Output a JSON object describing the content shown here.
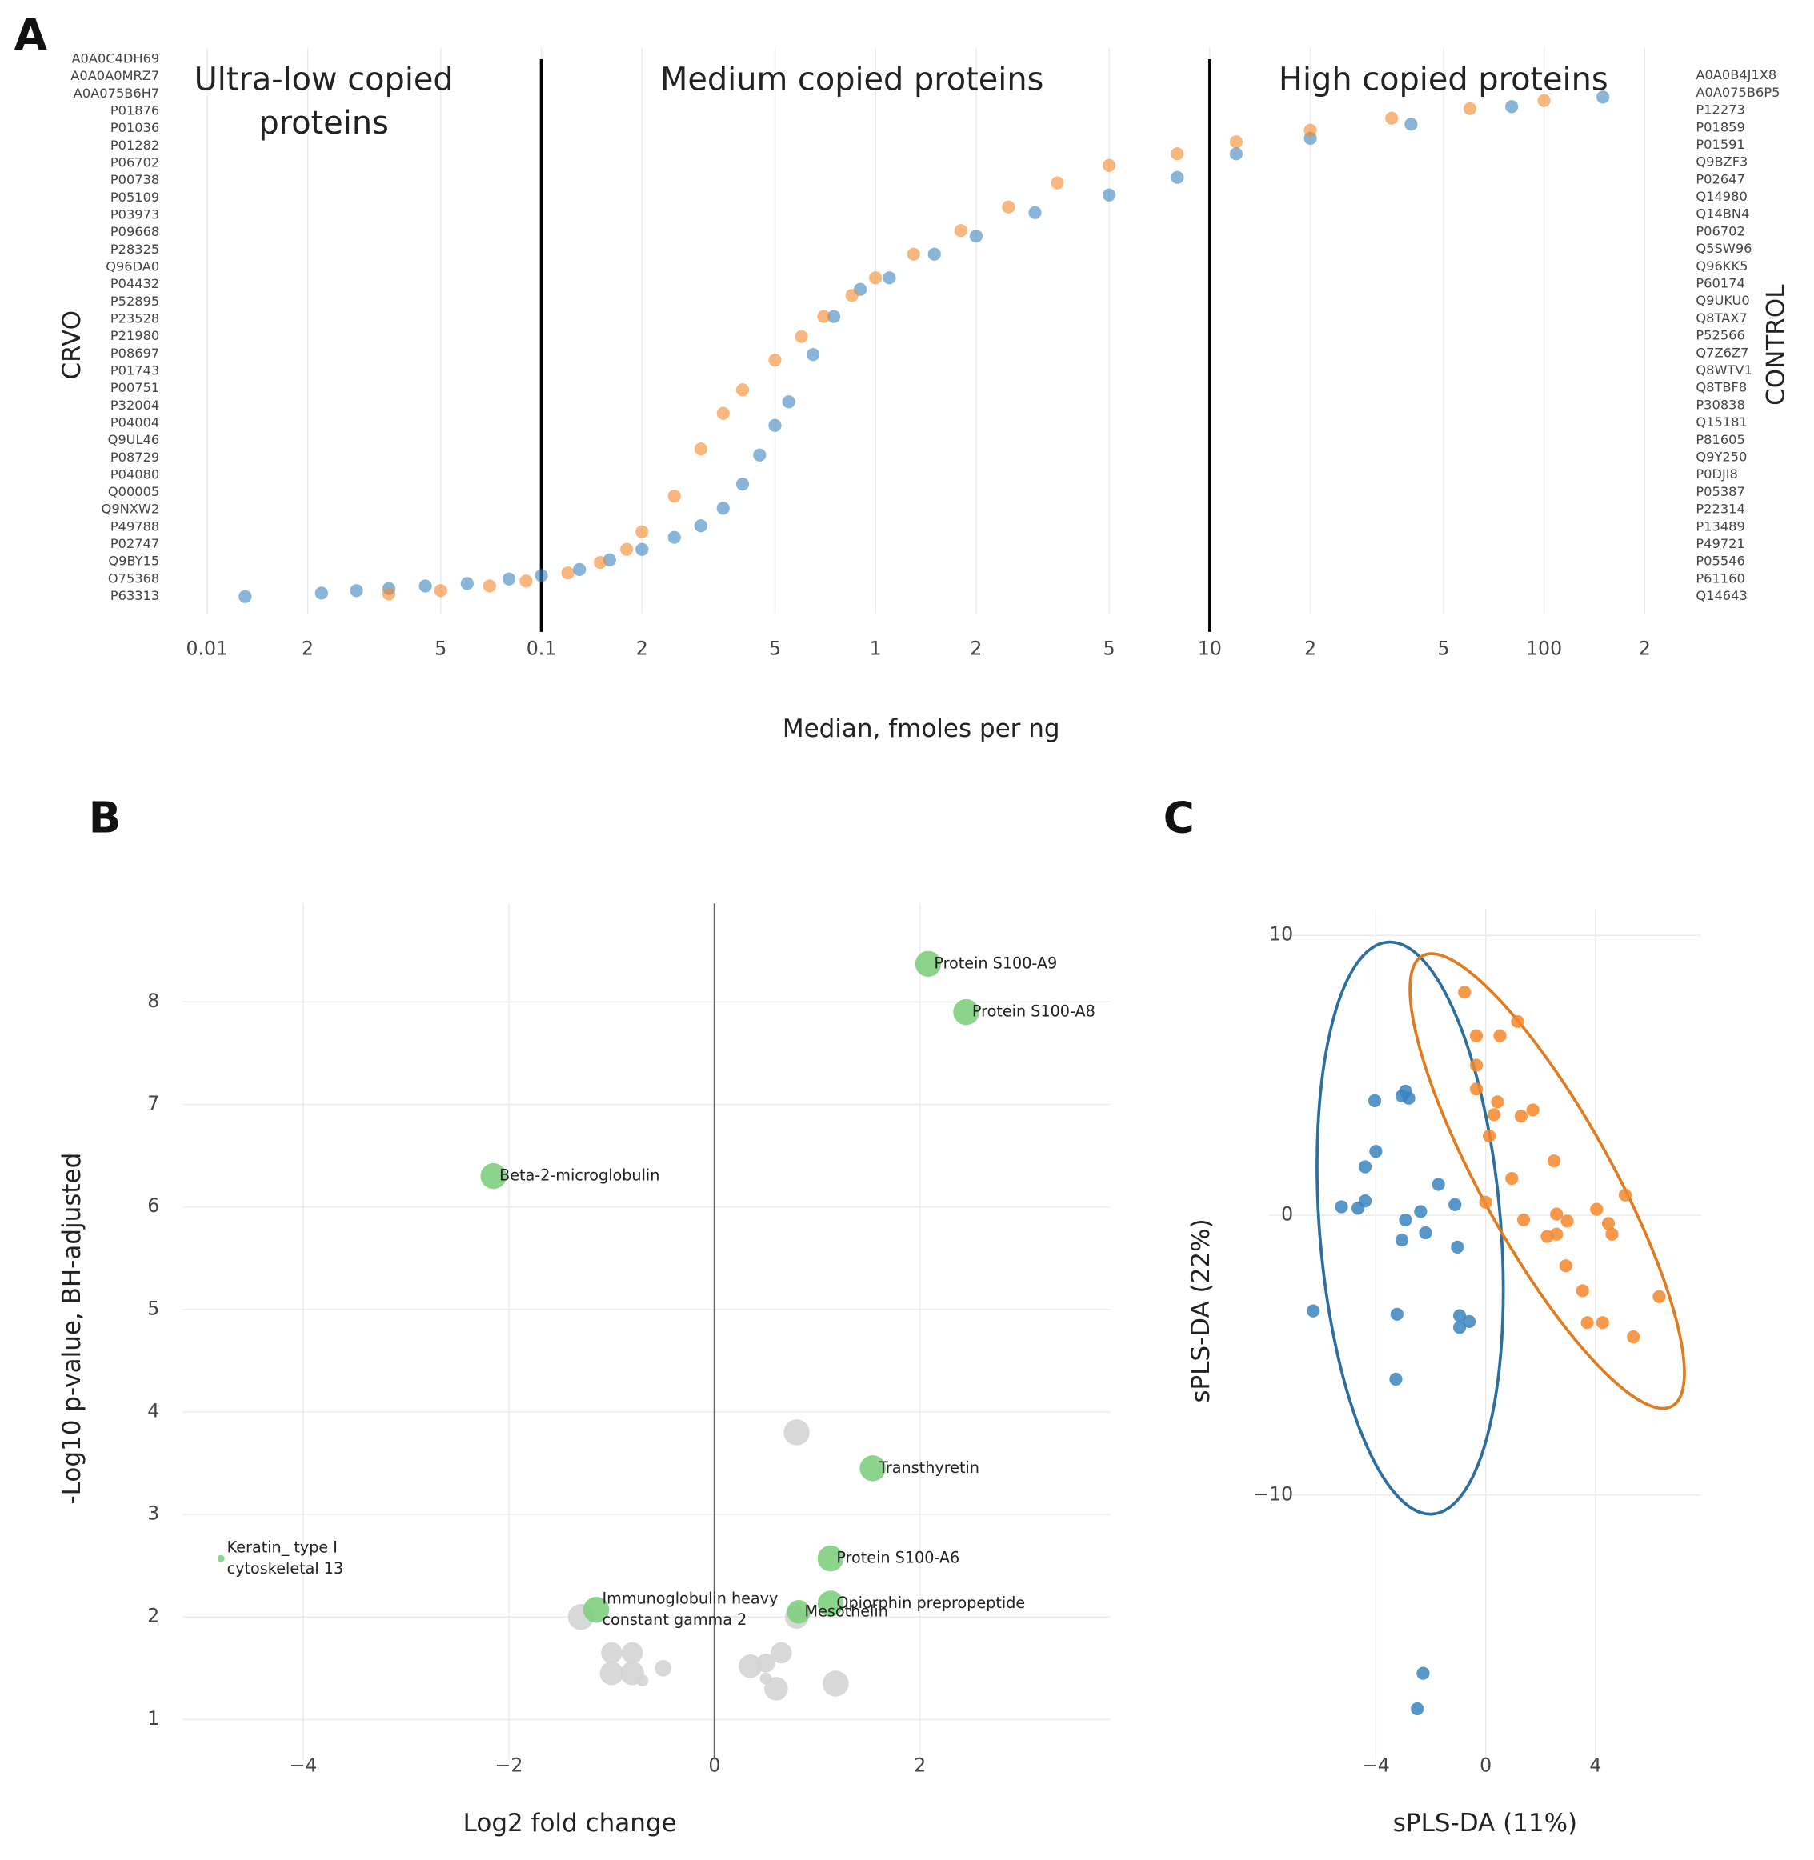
{
  "chart_data": [
    {
      "type": "rank_scatter",
      "panel": "A",
      "xlabel": "Median, fmoles per ng",
      "ylabel": "CRVO",
      "y2label": "CONTROL",
      "log_x": true,
      "xlim": [
        0.0075,
        250
      ],
      "ylim": [
        -0.035,
        1.094
      ],
      "xticks": [
        0.01,
        {
          "value": 0.02,
          "label": "2"
        },
        {
          "value": 0.05,
          "label": "5"
        },
        0.1,
        {
          "value": 0.2,
          "label": "2"
        },
        {
          "value": 0.5,
          "label": "5"
        },
        1,
        2,
        5,
        10,
        {
          "value": 20,
          "label": "2"
        },
        {
          "value": 50,
          "label": "5"
        },
        100,
        {
          "value": 200,
          "label": "2"
        }
      ],
      "vlines": [
        0.1,
        10
      ],
      "region_labels": [
        [
          "Ultra-low copied",
          "proteins"
        ],
        [
          "Medium copied proteins"
        ],
        [
          "High copied proteins"
        ]
      ],
      "left_labels": [
        "A0A0C4DH69",
        "A0A0A0MRZ7",
        "A0A075B6H7",
        "P01876",
        "P01036",
        "P01282",
        "P06702",
        "P00738",
        "P05109",
        "P03973",
        "P09668",
        "P28325",
        "Q96DA0",
        "P04432",
        "P52895",
        "P23528",
        "P21980",
        "P08697",
        "P01743",
        "P00751",
        "P32004",
        "P04004",
        "Q9UL46",
        "P08729",
        "P04080",
        "Q00005",
        "Q9NXW2",
        "P49788",
        "P02747",
        "Q9BY15",
        "O75368",
        "P63313"
      ],
      "right_labels": [
        "A0A0B4J1X8",
        "A0A075B6P5",
        "P12273",
        "P01859",
        "P01591",
        "Q9BZF3",
        "P02647",
        "Q14980",
        "Q14BN4",
        "P06702",
        "Q5SW96",
        "Q96KK5",
        "P60174",
        "Q9UKU0",
        "Q8TAX7",
        "P52566",
        "Q7Z6Z7",
        "Q8WTV1",
        "Q8TBF8",
        "P30838",
        "Q15181",
        "P81605",
        "Q9Y250",
        "P0DJI8",
        "P05387",
        "P22314",
        "P13489",
        "P49721",
        "P05546",
        "P61160",
        "Q14643"
      ],
      "series": [
        {
          "color": "#3a84c0",
          "x": [
            0.013,
            0.022,
            0.028,
            0.035,
            0.045,
            0.06,
            0.08,
            0.1,
            0.13,
            0.16,
            0.2,
            0.25,
            0.3,
            0.35,
            0.4,
            0.45,
            0.5,
            0.55,
            0.65,
            0.75,
            0.9,
            1.1,
            1.5,
            2,
            3,
            5,
            8,
            12,
            20,
            40,
            80,
            150
          ],
          "y": [
            0,
            0.007,
            0.012,
            0.016,
            0.021,
            0.026,
            0.035,
            0.042,
            0.054,
            0.073,
            0.094,
            0.118,
            0.141,
            0.176,
            0.224,
            0.282,
            0.341,
            0.388,
            0.482,
            0.558,
            0.612,
            0.635,
            0.682,
            0.718,
            0.765,
            0.8,
            0.835,
            0.882,
            0.913,
            0.941,
            0.976,
            0.995
          ]
        },
        {
          "color": "#f5872b",
          "x": [
            0.035,
            0.05,
            0.07,
            0.09,
            0.12,
            0.15,
            0.18,
            0.2,
            0.25,
            0.3,
            0.35,
            0.4,
            0.5,
            0.6,
            0.7,
            0.85,
            1,
            1.3,
            1.8,
            2.5,
            3.5,
            5,
            8,
            12,
            20,
            35,
            60,
            100
          ],
          "y": [
            0.005,
            0.012,
            0.021,
            0.031,
            0.047,
            0.068,
            0.094,
            0.129,
            0.2,
            0.294,
            0.365,
            0.412,
            0.471,
            0.518,
            0.558,
            0.6,
            0.635,
            0.682,
            0.729,
            0.776,
            0.824,
            0.859,
            0.882,
            0.906,
            0.929,
            0.953,
            0.972,
            0.988
          ]
        }
      ]
    },
    {
      "type": "bubble",
      "panel": "B",
      "xlabel": "Log2 fold change",
      "ylabel": "-Log10 p-value, BH-adjusted",
      "xlim": [
        -5.17,
        3.85
      ],
      "ylim": [
        0.61,
        8.96
      ],
      "xticks": [
        {
          "value": -4,
          "label": "−4"
        },
        {
          "value": -2,
          "label": "−2"
        },
        0,
        2
      ],
      "yticks": [
        1,
        2,
        3,
        4,
        5,
        6,
        7,
        8
      ],
      "grid": true,
      "series": [
        {
          "color": "#d4d4d4",
          "x": [
            0.8,
            -1.3,
            0.8,
            -1.0,
            -0.8,
            -1.0,
            -0.8,
            -0.5,
            0.35,
            0.5,
            0.65,
            0.6,
            1.18,
            -0.7,
            0.5
          ],
          "y": [
            3.8,
            2.0,
            2.0,
            1.65,
            1.65,
            1.45,
            1.45,
            1.5,
            1.52,
            1.55,
            1.65,
            1.3,
            1.35,
            1.38,
            1.4
          ],
          "sizes": [
            11,
            11,
            10,
            9,
            9,
            10,
            10,
            7,
            10,
            8,
            9,
            10,
            11,
            5,
            5
          ]
        },
        {
          "color": "#7fcf7f",
          "x": [
            2.08,
            2.45,
            -2.15,
            1.54,
            1.13,
            1.13,
            0.82,
            -1.15,
            -4.8
          ],
          "y": [
            8.37,
            7.9,
            6.3,
            3.45,
            2.57,
            2.13,
            2.05,
            2.07,
            2.57
          ],
          "sizes": [
            11,
            11,
            11,
            11,
            11,
            11,
            10,
            11,
            3
          ],
          "labels": [
            [
              "Protein S100-A9"
            ],
            [
              "Protein S100-A8"
            ],
            [
              "Beta-2-microglobulin"
            ],
            [
              "Transthyretin"
            ],
            [
              "Protein S100-A6"
            ],
            [
              "Opiorphin prepropeptide"
            ],
            [
              "Mesothelin"
            ],
            [
              "Immunoglobulin heavy",
              "constant gamma 2"
            ],
            [
              "Keratin_ type I",
              "cytoskeletal 13"
            ]
          ]
        }
      ]
    },
    {
      "type": "scatter_ellipse",
      "panel": "C",
      "xlabel": "sPLS-DA (11%)",
      "ylabel": "sPLS-DA (22%)",
      "xlim": [
        -7.87,
        7.83
      ],
      "ylim": [
        -19.45,
        10.93
      ],
      "xticks": [
        {
          "value": -4,
          "label": "−4"
        },
        0,
        4
      ],
      "yticks": [
        {
          "value": -10,
          "label": "−10"
        },
        0,
        10
      ],
      "grid": true,
      "series": [
        {
          "color": "#3a84c0",
          "ellipse_color": "#2a6f9e",
          "x": [
            -6.28,
            -5.25,
            -4.65,
            -4.39,
            -4.39,
            -4,
            -4.04,
            -3.05,
            -2.92,
            -2.8,
            -1.72,
            -1.12,
            -2.37,
            -2.92,
            -3.05,
            -2.19,
            -1.03,
            -3.23,
            -0.95,
            -0.6,
            -0.95,
            -3.27,
            -2.28,
            -2.49
          ],
          "y": [
            -3.42,
            0.3,
            0.25,
            0.51,
            1.73,
            2.28,
            4.09,
            4.26,
            4.43,
            4.18,
            1.1,
            0.38,
            0.13,
            -0.17,
            -0.89,
            -0.63,
            -1.14,
            -3.54,
            -3.59,
            -3.8,
            -4.01,
            -5.86,
            -16.37,
            -17.64
          ],
          "ellipse": {
            "cx": -2.75,
            "cy": -0.46,
            "rx": 3.3,
            "ry": 10.25,
            "angle": -4.5
          }
        },
        {
          "color": "#f5872b",
          "ellipse_color": "#e07b1f",
          "x": [
            -0.77,
            -0.34,
            0.52,
            1.16,
            -0.34,
            -0.34,
            0.43,
            1.72,
            1.29,
            0.3,
            0.13,
            2.49,
            0.95,
            0,
            1.38,
            2.58,
            2.97,
            4.04,
            5.08,
            4.47,
            4.6,
            2.24,
            2.58,
            2.92,
            3.53,
            3.7,
            4.26,
            5.38,
            6.32
          ],
          "y": [
            7.97,
            6.41,
            6.41,
            6.92,
            5.36,
            4.51,
            4.05,
            3.76,
            3.54,
            3.59,
            2.83,
            1.94,
            1.31,
            0.46,
            -0.17,
            0.04,
            -0.21,
            0.21,
            0.72,
            -0.3,
            -0.68,
            -0.76,
            -0.68,
            -1.81,
            -2.7,
            -3.84,
            -3.84,
            -4.35,
            -2.91
          ],
          "ellipse": {
            "cx": 2.24,
            "cy": 1.22,
            "rx": 2.37,
            "ry": 9.2,
            "angle": -29
          }
        }
      ]
    }
  ]
}
